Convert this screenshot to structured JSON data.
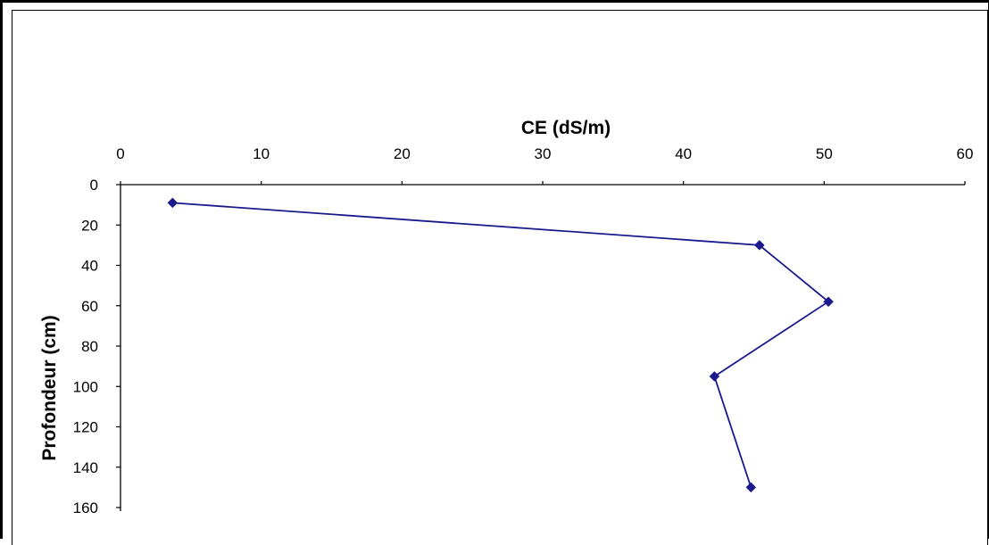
{
  "chart_data": {
    "type": "line",
    "title": "",
    "xlabel": "CE (dS/m)",
    "ylabel": "Profondeur (cm)",
    "x_axis_position": "top",
    "y_axis_inverted": true,
    "xlim": [
      0,
      60
    ],
    "ylim": [
      0,
      160
    ],
    "x_ticks": [
      "0",
      "10",
      "20",
      "30",
      "40",
      "50",
      "60"
    ],
    "y_ticks": [
      "0",
      "20",
      "40",
      "60",
      "80",
      "100",
      "120",
      "140",
      "160"
    ],
    "grid": false,
    "legend": false,
    "colors": {
      "series": "#1a1a8c",
      "axis": "#000000"
    },
    "series": [
      {
        "x": [
          3.7,
          45.4,
          50.3,
          42.2,
          44.8
        ],
        "y": [
          9,
          30,
          58,
          95,
          150
        ]
      }
    ]
  }
}
